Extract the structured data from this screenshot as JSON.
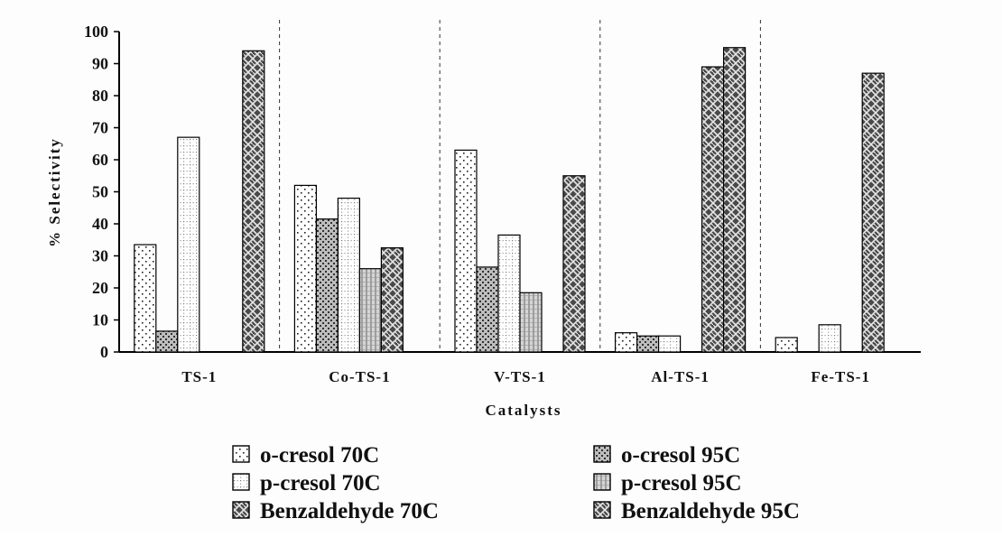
{
  "chart_data": {
    "type": "bar",
    "title": "",
    "xlabel": "Catalysts",
    "ylabel": "% Selectivity",
    "ylim": [
      0,
      100
    ],
    "yticks": [
      "0",
      "10",
      "20",
      "30",
      "40",
      "50",
      "60",
      "70",
      "80",
      "90",
      "100"
    ],
    "categories": [
      "TS-1",
      "Co-TS-1",
      "V-TS-1",
      "Al-TS-1",
      "Fe-TS-1"
    ],
    "grid": false,
    "legend_position": "bottom",
    "series": [
      {
        "name": "o-cresol 70C",
        "values": [
          33.5,
          52,
          63,
          6,
          4.5
        ],
        "pattern": "dots-sparse",
        "color": "#ffffff"
      },
      {
        "name": "o-cresol 95C",
        "values": [
          6.5,
          41.5,
          26.5,
          5,
          0
        ],
        "pattern": "dots-dense",
        "color": "#c8c8c8"
      },
      {
        "name": "p-cresol 70C",
        "values": [
          67,
          48,
          36.5,
          5,
          8.5
        ],
        "pattern": "grid-light",
        "color": "#ffffff"
      },
      {
        "name": "p-cresol 95C",
        "values": [
          0,
          26,
          18.5,
          0,
          0
        ],
        "pattern": "vertical-lines",
        "color": "#cfcfcf"
      },
      {
        "name": "Benzaldehyde 70C",
        "values": [
          0,
          32.5,
          0,
          89,
          87
        ],
        "pattern": "weave-dark",
        "color": "#555555"
      },
      {
        "name": "Benzaldehyde 95C",
        "values": [
          94,
          0,
          55,
          95,
          0
        ],
        "pattern": "weave-dark",
        "color": "#555555"
      }
    ]
  }
}
